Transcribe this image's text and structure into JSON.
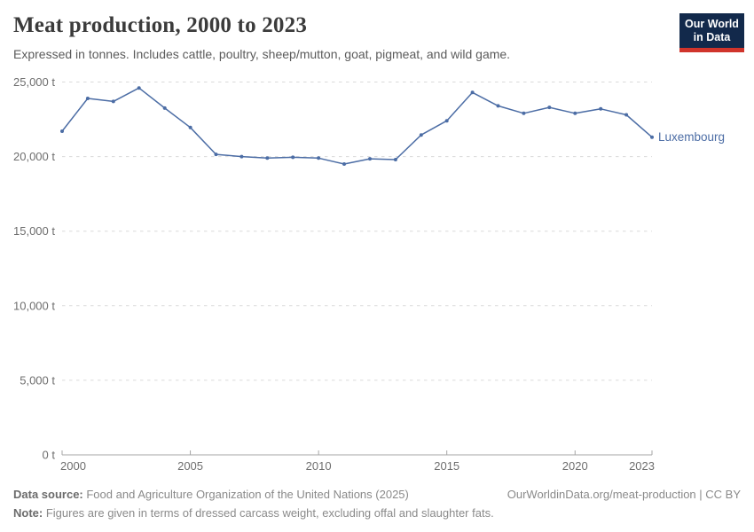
{
  "header": {
    "title": "Meat production, 2000 to 2023",
    "subtitle": "Expressed in tonnes. Includes cattle, poultry, sheep/mutton, goat, pigmeat, and wild game.",
    "logo": {
      "line1": "Our World",
      "line2": "in Data"
    }
  },
  "chart_data": {
    "type": "line",
    "title": "Meat production, 2000 to 2023",
    "unit": "tonnes",
    "x": [
      2000,
      2001,
      2002,
      2003,
      2004,
      2005,
      2006,
      2007,
      2008,
      2009,
      2010,
      2011,
      2012,
      2013,
      2014,
      2015,
      2016,
      2017,
      2018,
      2019,
      2020,
      2021,
      2022,
      2023
    ],
    "series": [
      {
        "name": "Luxembourg",
        "color": "#4c6da5",
        "values": [
          21700,
          23900,
          23700,
          24600,
          23250,
          21950,
          20150,
          20000,
          19900,
          19950,
          19900,
          19500,
          19850,
          19800,
          21450,
          22400,
          24300,
          23400,
          22900,
          23300,
          22900,
          23200,
          22800,
          21300
        ]
      }
    ],
    "ylim": [
      0,
      25000
    ],
    "yticks": [
      0,
      5000,
      10000,
      15000,
      20000,
      25000
    ],
    "ytick_labels": [
      "0 t",
      "5,000 t",
      "10,000 t",
      "15,000 t",
      "20,000 t",
      "25,000 t"
    ],
    "xticks": [
      2000,
      2005,
      2010,
      2015,
      2020,
      2023
    ],
    "xtick_labels": [
      "2000",
      "2005",
      "2010",
      "2015",
      "2020",
      "2023"
    ],
    "grid": "horizontal-dashed",
    "legend_position": "end-of-line-label"
  },
  "colors": {
    "line": "#4c6da5",
    "grid": "#dadada",
    "axis": "#a5a5a5",
    "logo_bg": "#12294b",
    "logo_bar": "#d0342b"
  },
  "footer": {
    "source_label": "Data source:",
    "source_text": " Food and Agriculture Organization of the United Nations (2025)",
    "note_label": "Note:",
    "note_text": " Figures are given in terms of dressed carcass weight, excluding offal and slaughter fats.",
    "link_text": "OurWorldinData.org/meat-production | CC BY"
  }
}
